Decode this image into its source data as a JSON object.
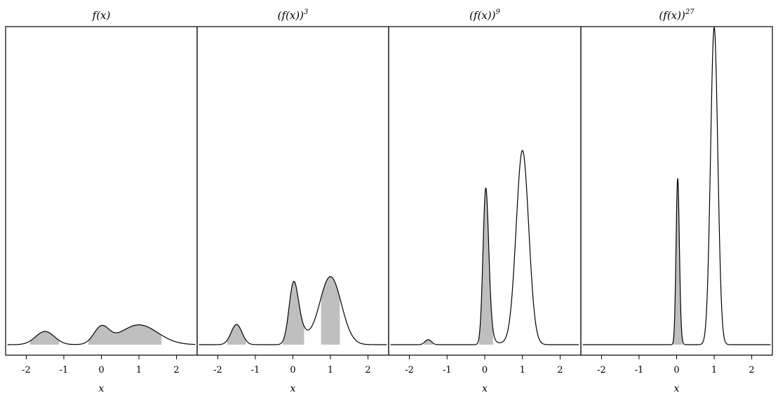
{
  "chart_data": [
    {
      "type": "area",
      "title": "f(x)",
      "title_superscript": "",
      "xlabel": "x",
      "xlim": [
        -2.55,
        2.55
      ],
      "xticks": [
        -2,
        -1,
        0,
        1,
        2
      ],
      "xtick_labels": [
        "-2",
        "-1",
        "0",
        "1",
        "2"
      ],
      "exponent": 1,
      "ylim": [
        0,
        1
      ],
      "shaded_intervals": [
        [
          -1.9,
          -1.12
        ],
        [
          -0.35,
          1.6
        ]
      ],
      "fill_color": "#bfbfbf",
      "line_color": "#000000"
    },
    {
      "type": "area",
      "title": "(f(x))",
      "title_superscript": "3",
      "xlabel": "x",
      "xlim": [
        -2.55,
        2.55
      ],
      "xticks": [
        -2,
        -1,
        0,
        1,
        2
      ],
      "xtick_labels": [
        "-2",
        "-1",
        "0",
        "1",
        "2"
      ],
      "exponent": 3,
      "ylim": [
        0,
        1
      ],
      "shaded_intervals": [
        [
          -1.75,
          -1.25
        ],
        [
          -0.27,
          0.3
        ],
        [
          0.75,
          1.25
        ]
      ],
      "fill_color": "#bfbfbf",
      "line_color": "#000000"
    },
    {
      "type": "area",
      "title": "(f(x))",
      "title_superscript": "9",
      "xlabel": "x",
      "xlim": [
        -2.55,
        2.55
      ],
      "xticks": [
        -2,
        -1,
        0,
        1,
        2
      ],
      "xtick_labels": [
        "-2",
        "-1",
        "0",
        "1",
        "2"
      ],
      "exponent": 9,
      "ylim": [
        0,
        1
      ],
      "shaded_intervals": [
        [
          -1.6,
          -1.38
        ],
        [
          -0.15,
          0.22
        ]
      ],
      "fill_color": "#bfbfbf",
      "line_color": "#000000"
    },
    {
      "type": "area",
      "title": "(f(x))",
      "title_superscript": "27",
      "xlabel": "x",
      "xlim": [
        -2.55,
        2.55
      ],
      "xticks": [
        -2,
        -1,
        0,
        1,
        2
      ],
      "xtick_labels": [
        "-2",
        "-1",
        "0",
        "1",
        "2"
      ],
      "exponent": 27,
      "ylim": [
        0,
        1
      ],
      "shaded_intervals": [
        [
          -0.1,
          0.15
        ]
      ],
      "fill_color": "#bfbfbf",
      "line_color": "#000000"
    }
  ]
}
